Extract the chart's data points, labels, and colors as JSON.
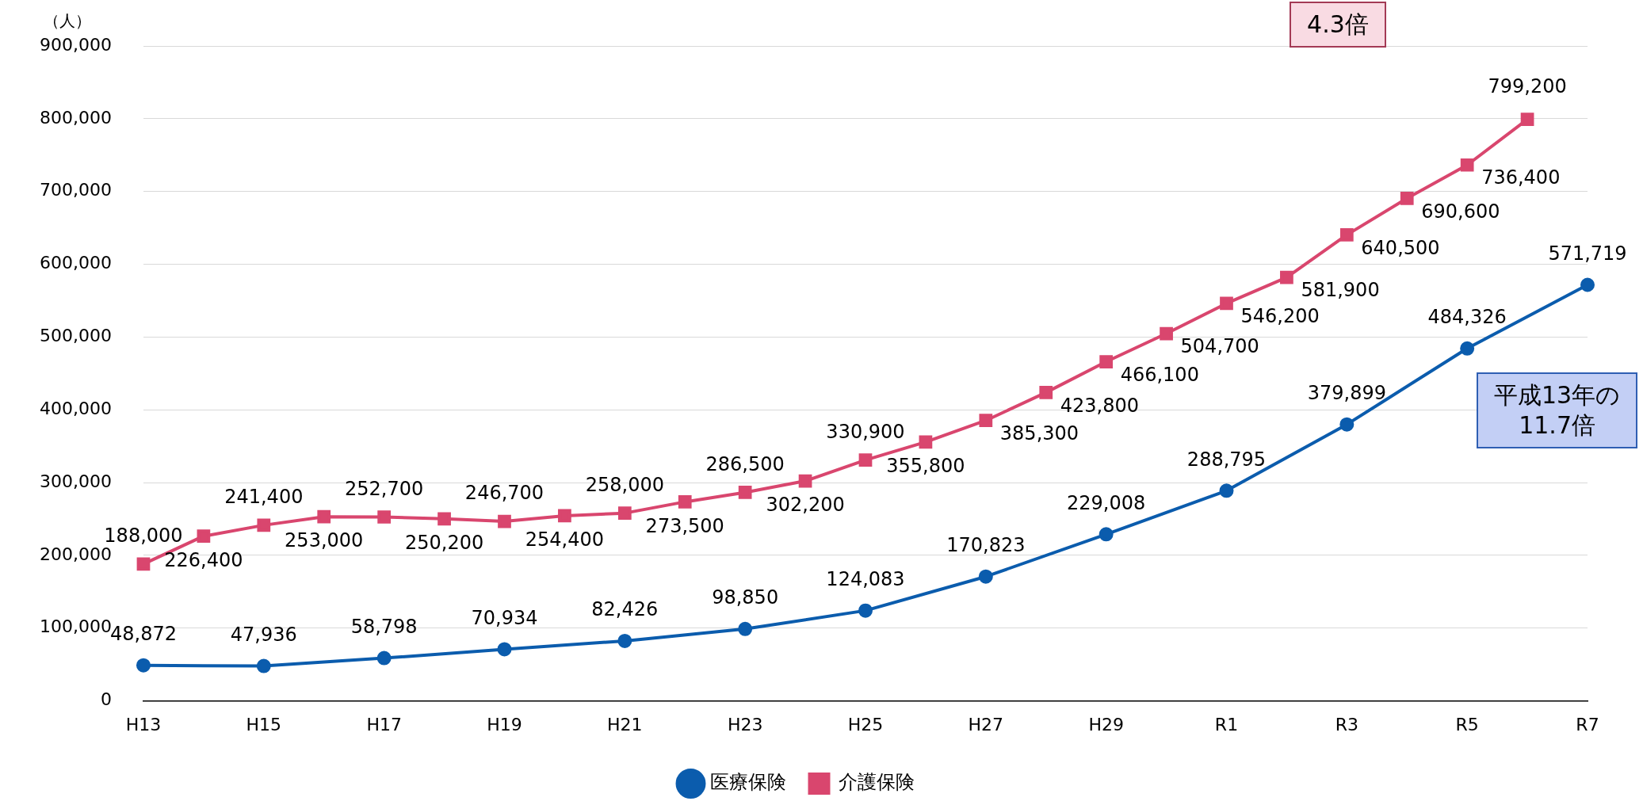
{
  "chart_data": {
    "type": "line",
    "ylabel": "（人）",
    "categories": [
      "H13",
      null,
      "H15",
      null,
      "H17",
      null,
      "H19",
      null,
      "H21",
      null,
      "H23",
      null,
      "H25",
      null,
      "H27",
      null,
      "H29",
      null,
      "R1",
      null,
      "R3",
      null,
      "R5",
      null,
      "R7"
    ],
    "series": [
      {
        "name": "医療保険",
        "color": "#0b5cad",
        "marker": "circle",
        "values": [
          48872,
          null,
          47936,
          null,
          58798,
          null,
          70934,
          null,
          82426,
          null,
          98850,
          null,
          124083,
          null,
          170823,
          null,
          229008,
          null,
          288795,
          null,
          379899,
          null,
          484326,
          null,
          571719
        ],
        "value_labels": [
          "48,872",
          null,
          "47,936",
          null,
          "58,798",
          null,
          "70,934",
          null,
          "82,426",
          null,
          "98,850",
          null,
          "124,083",
          null,
          "170,823",
          null,
          "229,008",
          null,
          "288,795",
          null,
          "379,899",
          null,
          "484,326",
          null,
          "571,719"
        ]
      },
      {
        "name": "介護保険",
        "color": "#d9466e",
        "marker": "square",
        "values": [
          188000,
          226400,
          241400,
          253000,
          252700,
          250200,
          246700,
          254400,
          258000,
          273500,
          286500,
          302200,
          330900,
          355800,
          385300,
          423800,
          466100,
          504700,
          546200,
          581900,
          640500,
          690600,
          736400,
          799200,
          null
        ],
        "value_labels": [
          "188,000",
          "226,400",
          "241,400",
          "253,000",
          "252,700",
          "250,200",
          "246,700",
          "254,400",
          "258,000",
          "273,500",
          "286,500",
          "302,200",
          "330,900",
          "355,800",
          "385,300",
          "423,800",
          "466,100",
          "504,700",
          "546,200",
          "581,900",
          "640,500",
          "690,600",
          "736,400",
          "799,200",
          null
        ]
      }
    ],
    "ylim": [
      0,
      900000
    ],
    "yticks": [
      {
        "value": 0,
        "label": "0"
      },
      {
        "value": 100000,
        "label": "100,000"
      },
      {
        "value": 200000,
        "label": "200,000"
      },
      {
        "value": 300000,
        "label": "300,000"
      },
      {
        "value": 400000,
        "label": "400,000"
      },
      {
        "value": 500000,
        "label": "500,000"
      },
      {
        "value": 600000,
        "label": "600,000"
      },
      {
        "value": 700000,
        "label": "700,000"
      },
      {
        "value": 800000,
        "label": "800,000"
      },
      {
        "value": 900000,
        "label": "900,000"
      }
    ],
    "grid": "y",
    "legend": "bottom",
    "annotations": [
      "4.3倍",
      "平成13年の\n11.7倍"
    ]
  }
}
